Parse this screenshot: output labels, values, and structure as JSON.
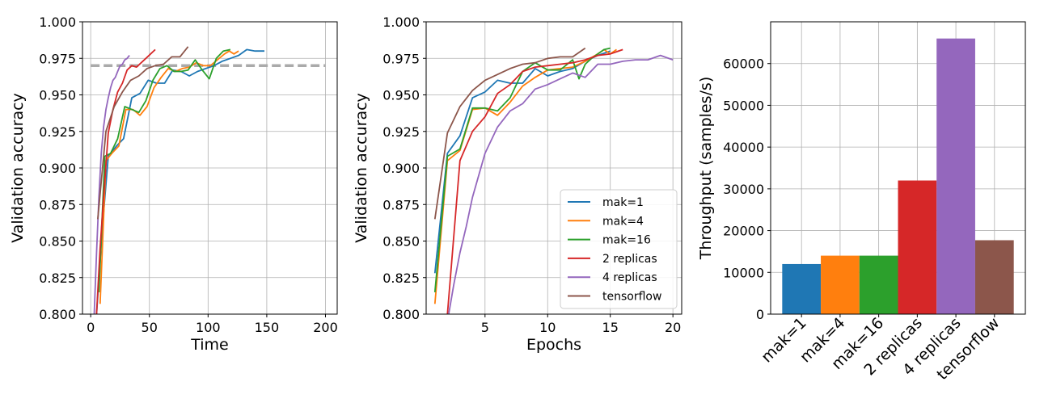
{
  "colors": {
    "mak1": "#1f77b4",
    "mak4": "#ff7f0e",
    "mak16": "#2ca02c",
    "rep2": "#d62728",
    "rep4": "#9467bd",
    "tf": "#8c564b",
    "target_line": "#aaaaaa",
    "grid": "#b0b0b0"
  },
  "legend": {
    "entries": [
      "mak=1",
      "mak=4",
      "mak=16",
      "2 replicas",
      "4 replicas",
      "tensorflow"
    ],
    "placement": "lower-right of middle panel"
  },
  "chart_data": [
    {
      "type": "line",
      "xlabel": "Time",
      "ylabel": "Validation accuracy",
      "xlim": [
        -7,
        210
      ],
      "ylim": [
        0.8,
        1.0
      ],
      "xticks": [
        0,
        50,
        100,
        150,
        200
      ],
      "yticks": [
        0.8,
        0.825,
        0.85,
        0.875,
        0.9,
        0.925,
        0.95,
        0.975,
        1.0
      ],
      "grid": true,
      "reference_line": {
        "y": 0.97,
        "x_range": [
          0,
          200
        ],
        "style": "dashed"
      },
      "series": [
        {
          "name": "mak=1",
          "color_key": "mak1",
          "x": [
            5,
            10,
            15,
            22,
            28,
            35,
            42,
            49,
            56,
            63,
            70,
            77,
            84,
            91,
            98,
            105,
            112,
            119,
            126,
            133,
            140,
            148
          ],
          "y": [
            0.8,
            0.86,
            0.908,
            0.915,
            0.92,
            0.948,
            0.951,
            0.96,
            0.958,
            0.958,
            0.967,
            0.966,
            0.963,
            0.966,
            0.968,
            0.97,
            0.973,
            0.975,
            0.977,
            0.981,
            0.98,
            0.98
          ]
        },
        {
          "name": "mak=4",
          "color_key": "mak4",
          "x": [
            8,
            13,
            18,
            24,
            30,
            36,
            42,
            48,
            54,
            60,
            66,
            72,
            78,
            84,
            90,
            96,
            102,
            108,
            114,
            118,
            122,
            126
          ],
          "y": [
            0.807,
            0.905,
            0.91,
            0.915,
            0.94,
            0.94,
            0.936,
            0.942,
            0.955,
            0.962,
            0.968,
            0.966,
            0.968,
            0.969,
            0.972,
            0.97,
            0.97,
            0.974,
            0.978,
            0.98,
            0.978,
            0.98
          ]
        },
        {
          "name": "mak=16",
          "color_key": "mak16",
          "x": [
            7,
            12,
            17,
            23,
            29,
            35,
            41,
            47,
            53,
            59,
            65,
            71,
            77,
            83,
            89,
            95,
            101,
            107,
            113,
            119
          ],
          "y": [
            0.815,
            0.908,
            0.91,
            0.92,
            0.942,
            0.94,
            0.938,
            0.946,
            0.96,
            0.968,
            0.97,
            0.966,
            0.966,
            0.967,
            0.974,
            0.967,
            0.961,
            0.975,
            0.98,
            0.981
          ]
        },
        {
          "name": "2 replicas",
          "color_key": "rep2",
          "x": [
            5,
            8,
            11,
            15,
            19,
            23,
            27,
            31,
            35,
            39,
            43,
            47,
            51,
            55
          ],
          "y": [
            0.8,
            0.845,
            0.88,
            0.924,
            0.94,
            0.952,
            0.958,
            0.967,
            0.97,
            0.969,
            0.972,
            0.975,
            0.978,
            0.981
          ]
        },
        {
          "name": "4 replicas",
          "color_key": "rep4",
          "x": [
            3,
            5,
            7,
            9,
            11,
            13,
            15,
            17,
            19,
            21,
            23,
            25,
            27,
            29,
            31,
            33
          ],
          "y": [
            0.8,
            0.842,
            0.88,
            0.91,
            0.928,
            0.94,
            0.948,
            0.955,
            0.96,
            0.962,
            0.966,
            0.97,
            0.971,
            0.974,
            0.975,
            0.977
          ]
        },
        {
          "name": "tensorflow",
          "color_key": "tf",
          "x": [
            6,
            13,
            20,
            27,
            34,
            41,
            48,
            55,
            62,
            69,
            76,
            83
          ],
          "y": [
            0.865,
            0.925,
            0.942,
            0.952,
            0.96,
            0.963,
            0.968,
            0.97,
            0.971,
            0.976,
            0.976,
            0.983
          ]
        }
      ]
    },
    {
      "type": "line",
      "xlabel": "Epochs",
      "ylabel": "Validation accuracy",
      "xlim": [
        0.3,
        20.7
      ],
      "ylim": [
        0.8,
        1.0
      ],
      "xticks": [
        5,
        10,
        15,
        20
      ],
      "yticks": [
        0.8,
        0.825,
        0.85,
        0.875,
        0.9,
        0.925,
        0.95,
        0.975,
        1.0
      ],
      "grid": true,
      "series": [
        {
          "name": "mak=1",
          "color_key": "mak1",
          "x": [
            1,
            2,
            3,
            4,
            5,
            6,
            7,
            8,
            9,
            10,
            11,
            12,
            13,
            14,
            15
          ],
          "y": [
            0.828,
            0.91,
            0.922,
            0.948,
            0.952,
            0.96,
            0.958,
            0.958,
            0.968,
            0.963,
            0.966,
            0.968,
            0.973,
            0.977,
            0.98
          ]
        },
        {
          "name": "mak=4",
          "color_key": "mak4",
          "x": [
            1,
            2,
            3,
            4,
            5,
            6,
            7,
            8,
            9,
            10,
            11,
            12,
            13,
            14,
            14.5,
            15,
            15.5
          ],
          "y": [
            0.807,
            0.905,
            0.912,
            0.94,
            0.941,
            0.936,
            0.945,
            0.956,
            0.962,
            0.967,
            0.968,
            0.969,
            0.973,
            0.978,
            0.981,
            0.978,
            0.981
          ]
        },
        {
          "name": "mak=16",
          "color_key": "mak16",
          "x": [
            1,
            2,
            3,
            4,
            5,
            6,
            7,
            8,
            9,
            10,
            11,
            12,
            12.5,
            13,
            13.5,
            14,
            14.5,
            15
          ],
          "y": [
            0.815,
            0.908,
            0.913,
            0.941,
            0.941,
            0.939,
            0.948,
            0.966,
            0.972,
            0.967,
            0.967,
            0.974,
            0.961,
            0.971,
            0.975,
            0.978,
            0.981,
            0.982
          ]
        },
        {
          "name": "2 replicas",
          "color_key": "rep2",
          "x": [
            2,
            3,
            4,
            5,
            6,
            7,
            8,
            9,
            10,
            11,
            12,
            13,
            14,
            15,
            16
          ],
          "y": [
            0.8,
            0.905,
            0.925,
            0.935,
            0.951,
            0.957,
            0.966,
            0.969,
            0.97,
            0.971,
            0.972,
            0.974,
            0.977,
            0.978,
            0.981
          ]
        },
        {
          "name": "4 replicas",
          "color_key": "rep4",
          "x": [
            2.1,
            2.5,
            3.0,
            3.5,
            4,
            5,
            6,
            7,
            8,
            9,
            10,
            11,
            12,
            13,
            14,
            15,
            16,
            17,
            18,
            19,
            20
          ],
          "y": [
            0.8,
            0.82,
            0.842,
            0.86,
            0.88,
            0.91,
            0.928,
            0.939,
            0.944,
            0.954,
            0.957,
            0.961,
            0.965,
            0.962,
            0.971,
            0.971,
            0.973,
            0.974,
            0.974,
            0.977,
            0.974
          ]
        },
        {
          "name": "tensorflow",
          "color_key": "tf",
          "x": [
            1,
            2,
            3,
            4,
            5,
            6,
            7,
            8,
            9,
            10,
            11,
            12,
            13
          ],
          "y": [
            0.865,
            0.924,
            0.942,
            0.953,
            0.96,
            0.964,
            0.968,
            0.971,
            0.972,
            0.975,
            0.976,
            0.976,
            0.982
          ]
        }
      ]
    },
    {
      "type": "bar",
      "xlabel": "",
      "ylabel": "Throughput (samples/s)",
      "ylim": [
        0,
        70000
      ],
      "yticks": [
        0,
        10000,
        20000,
        30000,
        40000,
        50000,
        60000
      ],
      "grid": true,
      "categories": [
        "mak=1",
        "mak=4",
        "mak=16",
        "2 replicas",
        "4 replicas",
        "tensorflow"
      ],
      "values": [
        12000,
        14000,
        14000,
        32000,
        66000,
        17700
      ],
      "color_keys": [
        "mak1",
        "mak4",
        "mak16",
        "rep2",
        "rep4",
        "tf"
      ]
    }
  ]
}
